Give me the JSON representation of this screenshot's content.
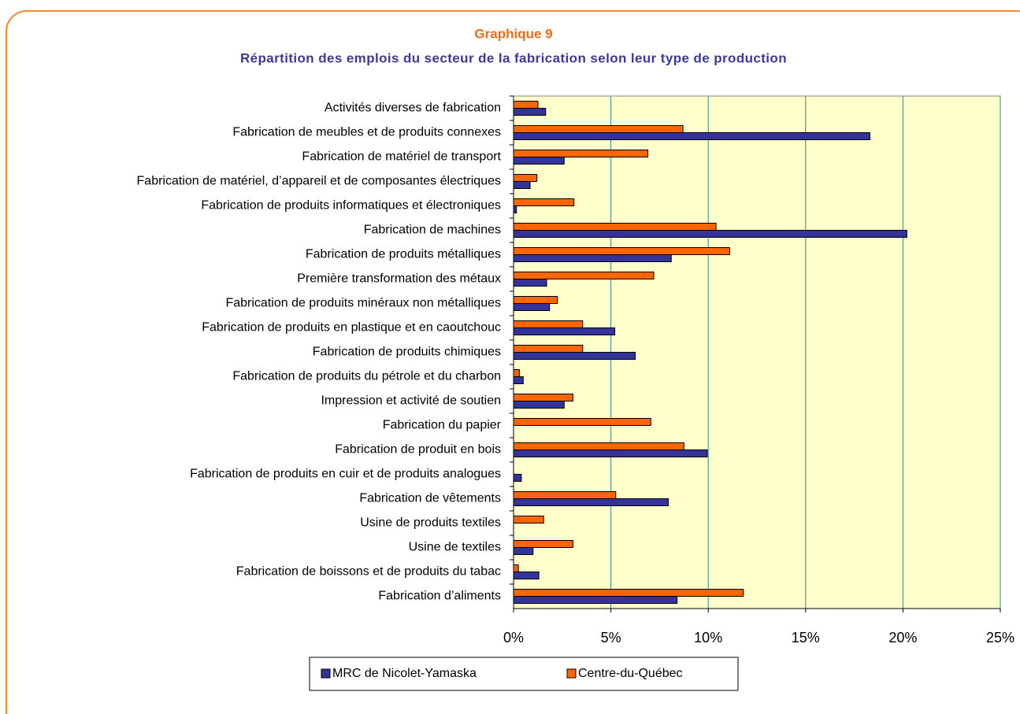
{
  "chart_data": {
    "type": "hbar",
    "title": "Graphique 9",
    "subtitle": "Répartition des emplois du secteur de la fabrication selon leur type de production",
    "categories": [
      "Activités diverses de fabrication",
      "Fabrication de meubles et de produits connexes",
      "Fabrication de matériel de transport",
      "Fabrication de matériel, d’appareil et de composantes électriques",
      "Fabrication de produits informatiques et électroniques",
      "Fabrication de machines",
      "Fabrication de produits métalliques",
      "Première transformation des métaux",
      "Fabrication de produits minéraux non métalliques",
      "Fabrication de produits en plastique et en caoutchouc",
      "Fabrication de produits chimiques",
      "Fabrication de produits du pétrole et du charbon",
      "Impression et activité de soutien",
      "Fabrication du papier",
      "Fabrication de produit en bois",
      "Fabrication de produits en cuir et de produits analogues",
      "Fabrication de vêtements",
      "Usine de produits textiles",
      "Usine de textiles",
      "Fabrication de boissons et de produits du tabac",
      "Fabrication d’aliments"
    ],
    "series": [
      {
        "name": "MRC de Nicolet-Yamaska",
        "color": "#333399",
        "values": [
          1.65,
          18.3,
          2.6,
          0.85,
          0.15,
          20.2,
          8.1,
          1.7,
          1.85,
          5.2,
          6.25,
          0.5,
          2.6,
          0,
          9.95,
          0.4,
          7.95,
          0,
          1.0,
          1.3,
          8.4
        ]
      },
      {
        "name": "Centre-du-Québec",
        "color": "#ff6600",
        "values": [
          1.25,
          8.7,
          6.9,
          1.2,
          3.1,
          10.4,
          11.1,
          7.2,
          2.25,
          3.55,
          3.55,
          0.3,
          3.05,
          7.05,
          8.75,
          0,
          5.25,
          1.55,
          3.05,
          0.25,
          11.8
        ]
      }
    ],
    "xlim": [
      0,
      25
    ],
    "xticks": [
      {
        "value": 0,
        "label": "0%"
      },
      {
        "value": 5,
        "label": "5%"
      },
      {
        "value": 10,
        "label": "10%"
      },
      {
        "value": 15,
        "label": "15%"
      },
      {
        "value": 20,
        "label": "20%"
      },
      {
        "value": 25,
        "label": "25%"
      }
    ],
    "grid": true,
    "plot_background": "#ffffcc",
    "grid_color": "#2e8b8b",
    "legend": "bottom"
  }
}
